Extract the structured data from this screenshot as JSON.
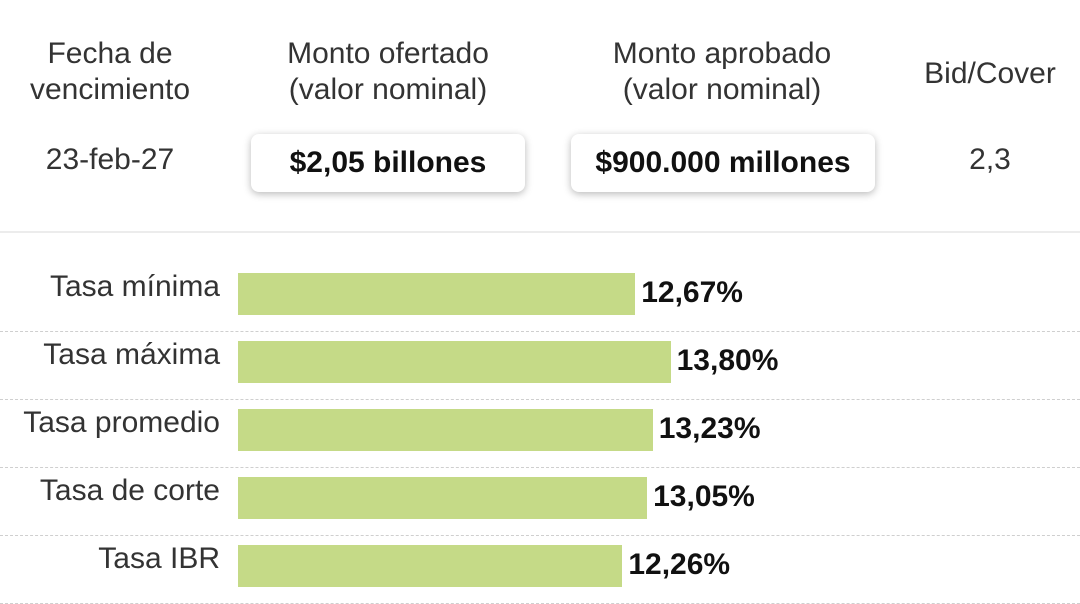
{
  "header": {
    "fecha": [
      "Fecha de",
      "vencimiento"
    ],
    "ofertado": [
      "Monto ofertado",
      "(valor nominal)"
    ],
    "aprobado": [
      "Monto aprobado",
      "(valor nominal)"
    ],
    "bid_cover": "Bid/Cover"
  },
  "summary": {
    "fecha": "23-feb-27",
    "ofertado": "$2,05 billones",
    "aprobado": "$900.000 millones",
    "bid_cover": "2,3"
  },
  "colors": {
    "bar": "#c5da87",
    "text": "#222222"
  },
  "chart_data": {
    "type": "bar",
    "orientation": "horizontal",
    "categories": [
      "Tasa mínima",
      "Tasa máxima",
      "Tasa promedio",
      "Tasa de corte",
      "Tasa IBR"
    ],
    "values": [
      12.67,
      13.8,
      13.23,
      13.05,
      12.26
    ],
    "value_labels": [
      "12,67%",
      "13,80%",
      "13,23%",
      "13,05%",
      "12,26%"
    ],
    "title": "",
    "xlabel": "",
    "ylabel": "",
    "grid": false
  }
}
